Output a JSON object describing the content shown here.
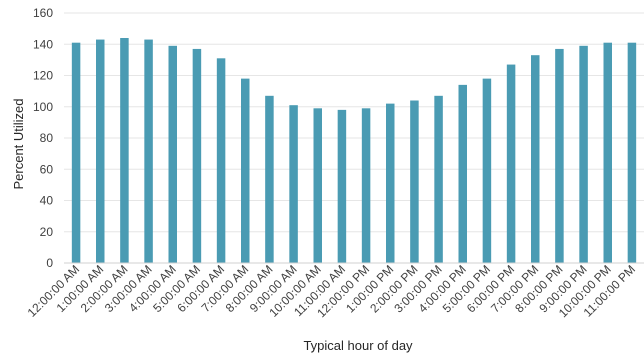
{
  "chart_data": {
    "type": "bar",
    "title": "",
    "xlabel": "Typical hour of day",
    "ylabel": "Percent Utilized",
    "ylim": [
      0,
      160
    ],
    "yticks": [
      0,
      20,
      40,
      60,
      80,
      100,
      120,
      140,
      160
    ],
    "grid": "horizontal",
    "legend": "none",
    "bar_color": "#4a9bb3",
    "categories": [
      "12:00:00 AM",
      "1:00:00 AM",
      "2:00:00 AM",
      "3:00:00 AM",
      "4:00:00 AM",
      "5:00:00 AM",
      "6:00:00 AM",
      "7:00:00 AM",
      "8:00:00 AM",
      "9:00:00 AM",
      "10:00:00 AM",
      "11:00:00 AM",
      "12:00:00 PM",
      "1:00:00 PM",
      "2:00:00 PM",
      "3:00:00 PM",
      "4:00:00 PM",
      "5:00:00 PM",
      "6:00:00 PM",
      "7:00:00 PM",
      "8:00:00 PM",
      "9:00:00 PM",
      "10:00:00 PM",
      "11:00:00 PM"
    ],
    "values": [
      141,
      143,
      144,
      143,
      139,
      137,
      131,
      118,
      107,
      101,
      99,
      98,
      99,
      102,
      104,
      107,
      114,
      118,
      127,
      133,
      137,
      139,
      141,
      141
    ]
  }
}
